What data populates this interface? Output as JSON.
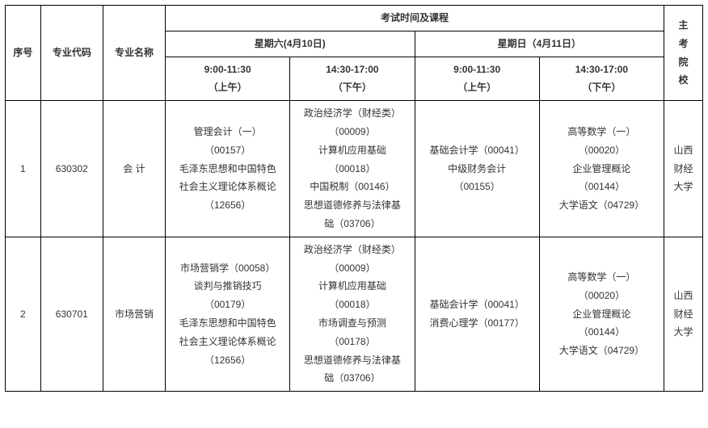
{
  "headers": {
    "seq": "序号",
    "major_code": "专业代码",
    "major_name": "专业名称",
    "exam_header": "考试时间及课程",
    "institution": "主考院校",
    "day_sat": "星期六(4月10日)",
    "day_sun": "星期日（4月11日）",
    "sat_am": "9:00-11:30",
    "sat_am_sub": "（上午）",
    "sat_pm": "14:30-17:00",
    "sat_pm_sub": "（下午）",
    "sun_am": "9:00-11:30",
    "sun_am_sub": "（上午）",
    "sun_pm": "14:30-17:00",
    "sun_pm_sub": "（下午）"
  },
  "rows": [
    {
      "seq": "1",
      "code": "630302",
      "name": "会 计",
      "sat_am": [
        "管理会计（一）",
        "（00157）",
        "毛泽东思想和中国特色",
        "社会主义理论体系概论",
        "（12656）"
      ],
      "sat_pm": [
        "政治经济学（财经类）",
        "（00009）",
        "计算机应用基础",
        "（00018）",
        "中国税制（00146）",
        "思想道德修养与法律基",
        "础（03706）"
      ],
      "sun_am": [
        "基础会计学（00041）",
        "中级财务会计",
        "（00155）"
      ],
      "sun_pm": [
        "高等数学（一）",
        "（00020）",
        "企业管理概论",
        "（00144）",
        "大学语文（04729）"
      ],
      "inst": [
        "山西",
        "财经",
        "大学"
      ]
    },
    {
      "seq": "2",
      "code": "630701",
      "name": "市场营销",
      "sat_am": [
        "市场营销学（00058）",
        "谈判与推销技巧",
        "（00179）",
        "毛泽东思想和中国特色",
        "社会主义理论体系概论",
        "（12656）"
      ],
      "sat_pm": [
        "政治经济学（财经类）",
        "（00009）",
        "计算机应用基础",
        "（00018）",
        "市场调查与预测",
        "（00178）",
        "思想道德修养与法律基",
        "础（03706）"
      ],
      "sun_am": [
        "基础会计学（00041）",
        "消费心理学（00177）"
      ],
      "sun_pm": [
        "高等数学（一）",
        "（00020）",
        "企业管理概论",
        "（00144）",
        "大学语文（04729）"
      ],
      "inst": [
        "山西",
        "财经",
        "大学"
      ]
    }
  ]
}
